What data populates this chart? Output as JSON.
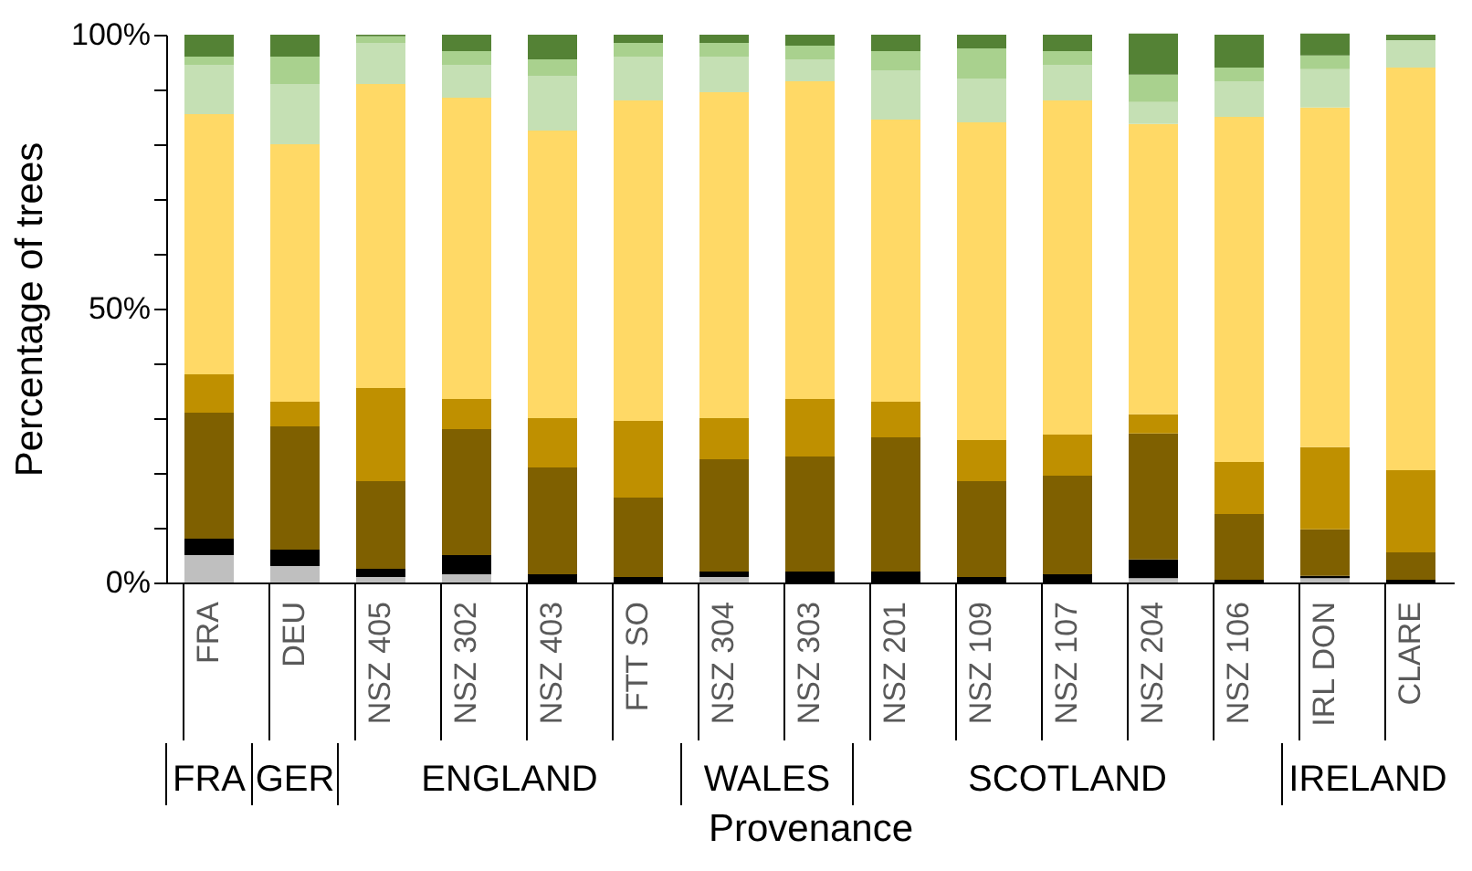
{
  "chart_data": {
    "type": "bar",
    "stacked": true,
    "ylabel": "Percentage of trees",
    "xlabel": "Provenance",
    "categories": [
      "FRA",
      "DEU",
      "NSZ 405",
      "NSZ 302",
      "NSZ 403",
      "FTT SO",
      "NSZ 304",
      "NSZ 303",
      "NSZ 201",
      "NSZ 109",
      "NSZ 107",
      "NSZ 204",
      "NSZ 106",
      "IRL DON",
      "CLARE"
    ],
    "series": [
      {
        "color": "#bfbfbf",
        "values": [
          5,
          3,
          1,
          1.5,
          0,
          0,
          1,
          0,
          0,
          0,
          0,
          0.8,
          0,
          0.8,
          0
        ]
      },
      {
        "color": "#000000",
        "values": [
          3,
          3,
          1.5,
          3.5,
          1.5,
          1,
          1,
          2,
          2,
          1,
          1.5,
          3.4,
          0.5,
          0.4,
          0.5
        ]
      },
      {
        "color": "#7f6000",
        "values": [
          23,
          22.5,
          16,
          23,
          19.5,
          14.5,
          20.5,
          21,
          24.5,
          17.5,
          18,
          23,
          12,
          8.5,
          5
        ]
      },
      {
        "color": "#bf9000",
        "values": [
          7,
          4.5,
          17,
          5.5,
          9,
          14,
          7.5,
          10.5,
          6.5,
          7.5,
          7.5,
          3.5,
          9.5,
          15,
          15
        ]
      },
      {
        "color": "#ffd966",
        "values": [
          47.5,
          47,
          55.5,
          55,
          52.5,
          58.5,
          59.5,
          58,
          51.5,
          58,
          61,
          53,
          63,
          62,
          73.5
        ]
      },
      {
        "color": "#c5e0b4",
        "values": [
          9,
          11,
          7.5,
          6,
          10,
          8,
          6.5,
          4,
          9,
          8,
          6.5,
          4,
          6.5,
          7,
          5
        ]
      },
      {
        "color": "#a9d18e",
        "values": [
          1.5,
          5,
          1.2,
          2.5,
          3,
          2.5,
          2.5,
          2.5,
          3.5,
          5.5,
          2.5,
          5,
          2.5,
          2.5,
          0
        ]
      },
      {
        "color": "#548235",
        "values": [
          4,
          4,
          0.3,
          3,
          4.5,
          1.5,
          1.5,
          2,
          3,
          2.5,
          3,
          7.5,
          6,
          4,
          1
        ]
      }
    ],
    "ylim": [
      0,
      100
    ],
    "yticks": [
      {
        "value": 0,
        "label": "0%"
      },
      {
        "value": 10,
        "label": null
      },
      {
        "value": 20,
        "label": null
      },
      {
        "value": 30,
        "label": null
      },
      {
        "value": 40,
        "label": null
      },
      {
        "value": 50,
        "label": "50%"
      },
      {
        "value": 60,
        "label": null
      },
      {
        "value": 70,
        "label": null
      },
      {
        "value": 80,
        "label": null
      },
      {
        "value": 90,
        "label": null
      },
      {
        "value": 100,
        "label": "100%"
      }
    ],
    "grid": false,
    "legend": false,
    "annotations": [
      "FRA",
      "GER",
      "ENGLAND",
      "WALES",
      "SCOTLAND",
      "IRELAND"
    ]
  }
}
